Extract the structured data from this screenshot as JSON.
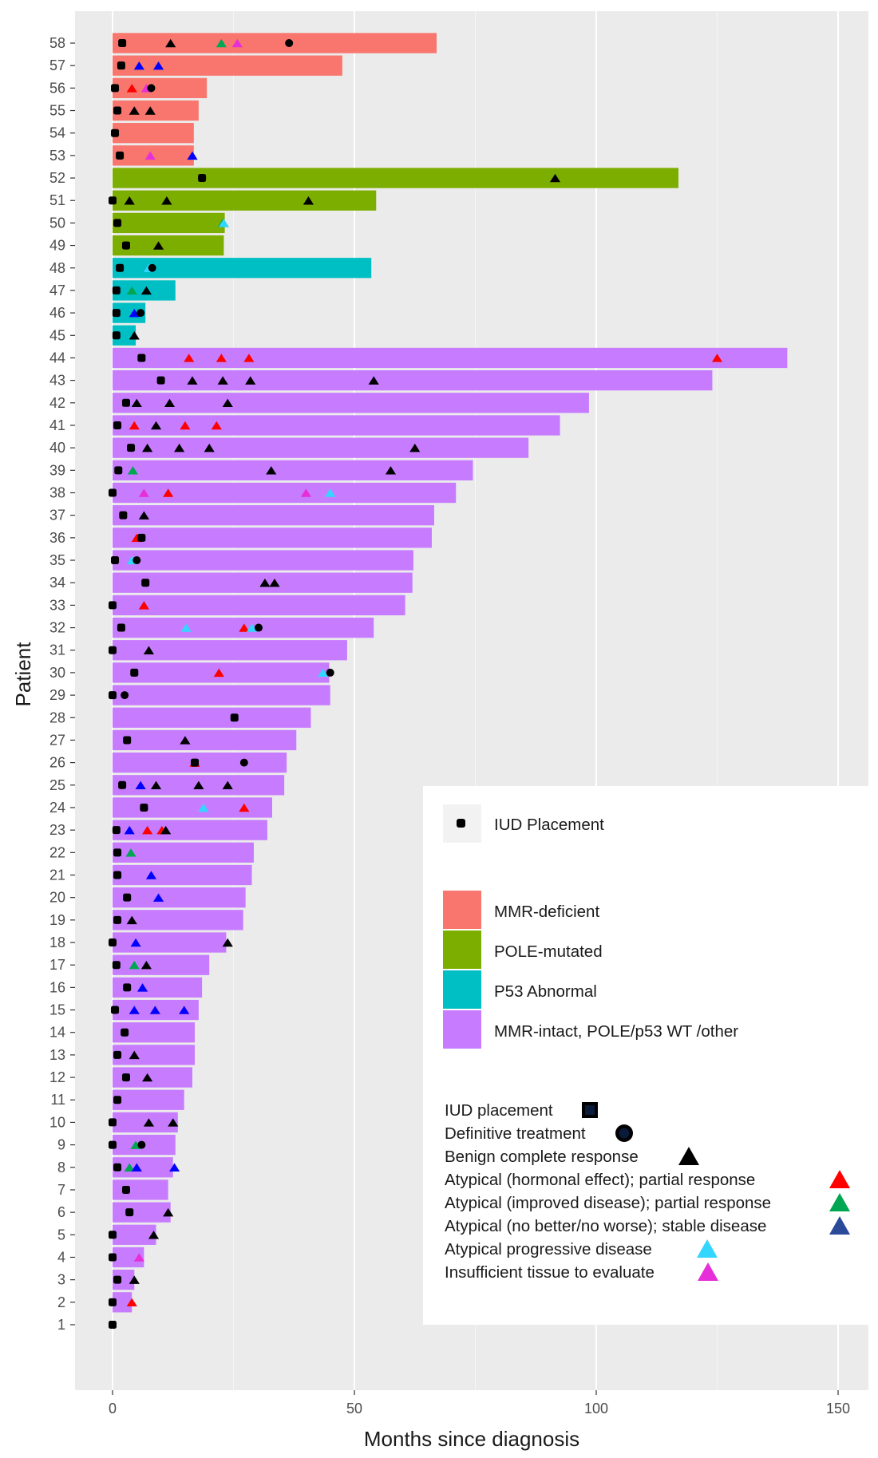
{
  "chart_data": {
    "type": "bar",
    "orientation": "horizontal",
    "title": "",
    "xlabel": "Months since diagnosis",
    "ylabel": "Patient",
    "xlim": [
      -8,
      158
    ],
    "x_ticks": [
      "0",
      "50",
      "100",
      "150"
    ],
    "grid": true,
    "patients": [
      "1",
      "2",
      "3",
      "4",
      "5",
      "6",
      "7",
      "8",
      "9",
      "10",
      "11",
      "12",
      "13",
      "14",
      "15",
      "16",
      "17",
      "18",
      "19",
      "20",
      "21",
      "22",
      "23",
      "24",
      "25",
      "26",
      "27",
      "28",
      "29",
      "30",
      "31",
      "32",
      "33",
      "34",
      "35",
      "36",
      "37",
      "38",
      "39",
      "40",
      "41",
      "42",
      "43",
      "44",
      "45",
      "46",
      "47",
      "48",
      "49",
      "50",
      "51",
      "52",
      "53",
      "54",
      "55",
      "56",
      "57",
      "58"
    ],
    "groups": [
      {
        "name": "MMR-deficient",
        "color": "#F8766D"
      },
      {
        "name": "POLE-mutated",
        "color": "#7CAE00"
      },
      {
        "name": "P53 Abnormal",
        "color": "#00BFC4"
      },
      {
        "name": "MMR-intact, POLE/p53 WT /other",
        "color": "#C77CFF"
      }
    ],
    "marker_types": [
      {
        "key": "iud",
        "label": "IUD placement",
        "shape": "square",
        "color": "#000000"
      },
      {
        "key": "def",
        "label": "Definitive treatment",
        "shape": "circle",
        "color": "#000000"
      },
      {
        "key": "benign",
        "label": "Benign complete response",
        "shape": "triangle",
        "color": "#000000"
      },
      {
        "key": "hormonal",
        "label": "Atypical (hormonal effect); partial response",
        "shape": "triangle",
        "color": "#FF0000"
      },
      {
        "key": "improved",
        "label": "Atypical (improved disease); partial response",
        "shape": "triangle",
        "color": "#00A651"
      },
      {
        "key": "stable",
        "label": "Atypical (no better/no worse); stable disease",
        "shape": "triangle",
        "color": "#0000FF"
      },
      {
        "key": "progressive",
        "label": "Atypical progressive disease",
        "shape": "triangle",
        "color": "#33D6FF"
      },
      {
        "key": "insufficient",
        "label": "Insufficient tissue to evaluate",
        "shape": "triangle",
        "color": "#E62FD8"
      }
    ],
    "bars": [
      {
        "patient": 1,
        "group": 3,
        "end": 0,
        "events": [
          [
            "iud",
            0
          ]
        ]
      },
      {
        "patient": 2,
        "group": 3,
        "end": 4,
        "events": [
          [
            "iud",
            0
          ],
          [
            "hormonal",
            4
          ]
        ]
      },
      {
        "patient": 3,
        "group": 3,
        "end": 4.5,
        "events": [
          [
            "iud",
            1
          ],
          [
            "benign",
            4.5
          ]
        ]
      },
      {
        "patient": 4,
        "group": 3,
        "end": 6.5,
        "events": [
          [
            "iud",
            0
          ],
          [
            "insufficient",
            5.5
          ]
        ]
      },
      {
        "patient": 5,
        "group": 3,
        "end": 9,
        "events": [
          [
            "iud",
            0
          ],
          [
            "benign",
            8.5
          ]
        ]
      },
      {
        "patient": 6,
        "group": 3,
        "end": 12,
        "events": [
          [
            "iud",
            3.5
          ],
          [
            "benign",
            11.5
          ]
        ]
      },
      {
        "patient": 7,
        "group": 3,
        "end": 11.5,
        "events": [
          [
            "iud",
            2.8
          ]
        ]
      },
      {
        "patient": 8,
        "group": 3,
        "end": 12.5,
        "events": [
          [
            "iud",
            1
          ],
          [
            "improved",
            3.5
          ],
          [
            "stable",
            5
          ],
          [
            "stable",
            12.8
          ]
        ]
      },
      {
        "patient": 9,
        "group": 3,
        "end": 13,
        "events": [
          [
            "iud",
            0
          ],
          [
            "improved",
            4.8
          ],
          [
            "def",
            6
          ]
        ]
      },
      {
        "patient": 10,
        "group": 3,
        "end": 13.5,
        "events": [
          [
            "iud",
            0
          ],
          [
            "benign",
            7.5
          ],
          [
            "benign",
            12.5
          ]
        ]
      },
      {
        "patient": 11,
        "group": 3,
        "end": 14.8,
        "events": [
          [
            "iud",
            1
          ]
        ]
      },
      {
        "patient": 12,
        "group": 3,
        "end": 16.5,
        "events": [
          [
            "iud",
            2.8
          ],
          [
            "benign",
            7.2
          ]
        ]
      },
      {
        "patient": 13,
        "group": 3,
        "end": 17,
        "events": [
          [
            "iud",
            1
          ],
          [
            "benign",
            4.5
          ]
        ]
      },
      {
        "patient": 14,
        "group": 3,
        "end": 17,
        "events": [
          [
            "iud",
            2.5
          ]
        ]
      },
      {
        "patient": 15,
        "group": 3,
        "end": 17.8,
        "events": [
          [
            "iud",
            0.5
          ],
          [
            "stable",
            4.5
          ],
          [
            "stable",
            8.8
          ],
          [
            "stable",
            14.8
          ]
        ]
      },
      {
        "patient": 16,
        "group": 3,
        "end": 18.5,
        "events": [
          [
            "iud",
            3
          ],
          [
            "stable",
            6.2
          ]
        ]
      },
      {
        "patient": 17,
        "group": 3,
        "end": 20,
        "events": [
          [
            "iud",
            0.8
          ],
          [
            "improved",
            4.5
          ],
          [
            "benign",
            7
          ]
        ]
      },
      {
        "patient": 18,
        "group": 3,
        "end": 23.5,
        "events": [
          [
            "iud",
            0
          ],
          [
            "stable",
            4.8
          ],
          [
            "benign",
            23.8
          ]
        ]
      },
      {
        "patient": 19,
        "group": 3,
        "end": 27,
        "events": [
          [
            "iud",
            1
          ],
          [
            "benign",
            4
          ]
        ]
      },
      {
        "patient": 20,
        "group": 3,
        "end": 27.5,
        "events": [
          [
            "iud",
            3
          ],
          [
            "stable",
            9.5
          ]
        ]
      },
      {
        "patient": 21,
        "group": 3,
        "end": 28.8,
        "events": [
          [
            "iud",
            1
          ],
          [
            "stable",
            8
          ]
        ]
      },
      {
        "patient": 22,
        "group": 3,
        "end": 29.2,
        "events": [
          [
            "iud",
            1
          ],
          [
            "improved",
            3.8
          ]
        ]
      },
      {
        "patient": 23,
        "group": 3,
        "end": 32,
        "events": [
          [
            "iud",
            0.8
          ],
          [
            "stable",
            3.5
          ],
          [
            "hormonal",
            7.2
          ],
          [
            "hormonal",
            10.2
          ],
          [
            "benign",
            11
          ]
        ]
      },
      {
        "patient": 24,
        "group": 3,
        "end": 33,
        "events": [
          [
            "iud",
            6.5
          ],
          [
            "progressive",
            18.8
          ],
          [
            "hormonal",
            27.2
          ]
        ]
      },
      {
        "patient": 25,
        "group": 3,
        "end": 35.5,
        "events": [
          [
            "iud",
            2
          ],
          [
            "stable",
            5.8
          ],
          [
            "benign",
            9
          ],
          [
            "benign",
            17.8
          ],
          [
            "benign",
            23.8
          ]
        ]
      },
      {
        "patient": 26,
        "group": 3,
        "end": 36,
        "events": [
          [
            "hormonal",
            17
          ],
          [
            "iud",
            17
          ],
          [
            "def",
            27.2
          ]
        ]
      },
      {
        "patient": 27,
        "group": 3,
        "end": 38,
        "events": [
          [
            "iud",
            3
          ],
          [
            "benign",
            15
          ]
        ]
      },
      {
        "patient": 28,
        "group": 3,
        "end": 41,
        "events": [
          [
            "iud",
            25.2
          ]
        ]
      },
      {
        "patient": 29,
        "group": 3,
        "end": 45,
        "events": [
          [
            "iud",
            0
          ],
          [
            "def",
            2.5
          ]
        ]
      },
      {
        "patient": 30,
        "group": 3,
        "end": 44.8,
        "events": [
          [
            "iud",
            4.5
          ],
          [
            "hormonal",
            22
          ],
          [
            "progressive",
            43.5
          ],
          [
            "def",
            45
          ]
        ]
      },
      {
        "patient": 31,
        "group": 3,
        "end": 48.5,
        "events": [
          [
            "iud",
            0
          ],
          [
            "benign",
            7.5
          ]
        ]
      },
      {
        "patient": 32,
        "group": 3,
        "end": 54,
        "events": [
          [
            "iud",
            1.8
          ],
          [
            "progressive",
            15.2
          ],
          [
            "hormonal",
            27.2
          ],
          [
            "progressive",
            28.8
          ],
          [
            "def",
            30.2
          ]
        ]
      },
      {
        "patient": 33,
        "group": 3,
        "end": 60.5,
        "events": [
          [
            "iud",
            0
          ],
          [
            "hormonal",
            6.5
          ]
        ]
      },
      {
        "patient": 34,
        "group": 3,
        "end": 62,
        "events": [
          [
            "iud",
            6.8
          ],
          [
            "benign",
            31.5
          ],
          [
            "benign",
            33.5
          ]
        ]
      },
      {
        "patient": 35,
        "group": 3,
        "end": 62.2,
        "events": [
          [
            "iud",
            0.5
          ],
          [
            "progressive",
            4
          ],
          [
            "def",
            5
          ]
        ]
      },
      {
        "patient": 36,
        "group": 3,
        "end": 66,
        "events": [
          [
            "hormonal",
            5
          ],
          [
            "iud",
            6
          ]
        ]
      },
      {
        "patient": 37,
        "group": 3,
        "end": 66.5,
        "events": [
          [
            "iud",
            2.2
          ],
          [
            "benign",
            6.5
          ]
        ]
      },
      {
        "patient": 38,
        "group": 3,
        "end": 71,
        "events": [
          [
            "iud",
            0
          ],
          [
            "insufficient",
            6.5
          ],
          [
            "hormonal",
            11.5
          ],
          [
            "insufficient",
            40
          ],
          [
            "progressive",
            45
          ]
        ]
      },
      {
        "patient": 39,
        "group": 3,
        "end": 74.5,
        "events": [
          [
            "iud",
            1.2
          ],
          [
            "improved",
            4.2
          ],
          [
            "benign",
            32.8
          ],
          [
            "benign",
            57.5
          ]
        ]
      },
      {
        "patient": 40,
        "group": 3,
        "end": 86,
        "events": [
          [
            "iud",
            3.8
          ],
          [
            "benign",
            7.2
          ],
          [
            "benign",
            13.8
          ],
          [
            "benign",
            20
          ],
          [
            "benign",
            62.5
          ]
        ]
      },
      {
        "patient": 41,
        "group": 3,
        "end": 92.5,
        "events": [
          [
            "iud",
            1
          ],
          [
            "hormonal",
            4.5
          ],
          [
            "benign",
            9
          ],
          [
            "hormonal",
            15
          ],
          [
            "hormonal",
            21.5
          ]
        ]
      },
      {
        "patient": 42,
        "group": 3,
        "end": 98.5,
        "events": [
          [
            "iud",
            2.8
          ],
          [
            "benign",
            5
          ],
          [
            "benign",
            11.8
          ],
          [
            "benign",
            23.8
          ]
        ]
      },
      {
        "patient": 43,
        "group": 3,
        "end": 124,
        "events": [
          [
            "iud",
            10
          ],
          [
            "benign",
            16.5
          ],
          [
            "benign",
            22.8
          ],
          [
            "benign",
            28.5
          ],
          [
            "benign",
            54
          ]
        ]
      },
      {
        "patient": 44,
        "group": 3,
        "end": 139.5,
        "events": [
          [
            "iud",
            6
          ],
          [
            "hormonal",
            15.8
          ],
          [
            "hormonal",
            22.5
          ],
          [
            "hormonal",
            28.2
          ],
          [
            "hormonal",
            125
          ]
        ]
      },
      {
        "patient": 45,
        "group": 2,
        "end": 4.8,
        "events": [
          [
            "iud",
            0.8
          ],
          [
            "benign",
            4.5
          ]
        ]
      },
      {
        "patient": 46,
        "group": 2,
        "end": 6.8,
        "events": [
          [
            "iud",
            0.8
          ],
          [
            "stable",
            4.5
          ],
          [
            "def",
            5.8
          ]
        ]
      },
      {
        "patient": 47,
        "group": 2,
        "end": 13,
        "events": [
          [
            "iud",
            0.8
          ],
          [
            "improved",
            4
          ],
          [
            "benign",
            7
          ]
        ]
      },
      {
        "patient": 48,
        "group": 2,
        "end": 53.5,
        "events": [
          [
            "iud",
            1.5
          ],
          [
            "progressive",
            7.5
          ],
          [
            "def",
            8.2
          ]
        ]
      },
      {
        "patient": 49,
        "group": 1,
        "end": 23,
        "events": [
          [
            "iud",
            2.8
          ],
          [
            "benign",
            9.5
          ]
        ]
      },
      {
        "patient": 50,
        "group": 1,
        "end": 23.2,
        "events": [
          [
            "iud",
            1
          ],
          [
            "improved",
            22.8
          ],
          [
            "progressive",
            23
          ]
        ]
      },
      {
        "patient": 51,
        "group": 1,
        "end": 54.5,
        "events": [
          [
            "iud",
            0
          ],
          [
            "benign",
            3.5
          ],
          [
            "benign",
            11.2
          ],
          [
            "benign",
            40.5
          ]
        ]
      },
      {
        "patient": 52,
        "group": 1,
        "end": 117,
        "events": [
          [
            "iud",
            18.5
          ],
          [
            "benign",
            91.5
          ]
        ]
      },
      {
        "patient": 53,
        "group": 0,
        "end": 16.8,
        "events": [
          [
            "iud",
            1.5
          ],
          [
            "insufficient",
            7.8
          ],
          [
            "stable",
            16.5
          ]
        ]
      },
      {
        "patient": 54,
        "group": 0,
        "end": 16.8,
        "events": [
          [
            "iud",
            0.5
          ]
        ]
      },
      {
        "patient": 55,
        "group": 0,
        "end": 17.8,
        "events": [
          [
            "iud",
            1
          ],
          [
            "benign",
            4.5
          ],
          [
            "benign",
            7.8
          ]
        ]
      },
      {
        "patient": 56,
        "group": 0,
        "end": 19.5,
        "events": [
          [
            "iud",
            0.5
          ],
          [
            "hormonal",
            4
          ],
          [
            "insufficient",
            7
          ],
          [
            "def",
            8
          ]
        ]
      },
      {
        "patient": 57,
        "group": 0,
        "end": 47.5,
        "events": [
          [
            "iud",
            1.8
          ],
          [
            "stable",
            5.5
          ],
          [
            "stable",
            9.5
          ]
        ]
      },
      {
        "patient": 58,
        "group": 0,
        "end": 67,
        "events": [
          [
            "iud",
            2
          ],
          [
            "benign",
            12
          ],
          [
            "improved",
            22.5
          ],
          [
            "insufficient",
            25.8
          ],
          [
            "def",
            36.5
          ]
        ]
      }
    ],
    "legend_iud_key": "IUD Placement",
    "legend_position": "bottom-right"
  }
}
